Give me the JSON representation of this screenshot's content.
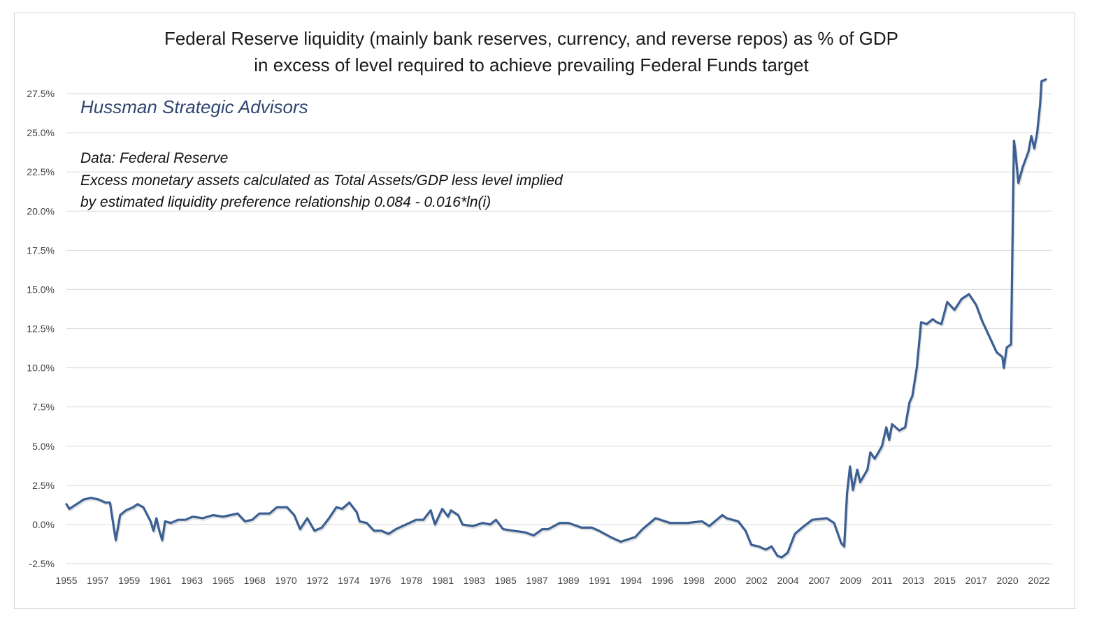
{
  "chart_data": {
    "type": "line",
    "title": "Federal Reserve liquidity (mainly bank reserves, currency, and reverse repos) as % of GDP",
    "subtitle": "in excess of level required to achieve prevailing Federal Funds target",
    "annotations": {
      "brand": "Hussman Strategic Advisors",
      "source": "Data: Federal Reserve",
      "note_line1": "Excess monetary assets calculated as Total Assets/GDP less level implied",
      "note_line2": "by estimated liquidity preference relationship 0.084 - 0.016*ln(i)"
    },
    "xlabel": "",
    "ylabel": "",
    "x_tick_labels": [
      "1955",
      "1957",
      "1959",
      "1961",
      "1963",
      "1965",
      "1968",
      "1970",
      "1972",
      "1974",
      "1976",
      "1978",
      "1981",
      "1983",
      "1985",
      "1987",
      "1989",
      "1991",
      "1994",
      "1996",
      "1998",
      "2000",
      "2002",
      "2004",
      "2007",
      "2009",
      "2011",
      "2013",
      "2015",
      "2017",
      "2020",
      "2022"
    ],
    "y_ticks": [
      -2.5,
      0,
      2.5,
      5,
      7.5,
      10,
      12.5,
      15,
      17.5,
      20,
      22.5,
      25,
      27.5
    ],
    "y_tick_labels": [
      "-2.5%",
      "0.0%",
      "2.5%",
      "5.0%",
      "7.5%",
      "10.0%",
      "12.5%",
      "15.0%",
      "17.5%",
      "20.0%",
      "22.5%",
      "25.0%",
      "27.5%"
    ],
    "ylim": [
      -2.5,
      27.5
    ],
    "xlim": [
      1955,
      2022.5
    ],
    "grid": true,
    "legend": "none",
    "line_color": "#3b5f93",
    "points": [
      [
        1955.0,
        1.3
      ],
      [
        1955.2,
        1.0
      ],
      [
        1955.7,
        1.3
      ],
      [
        1956.2,
        1.6
      ],
      [
        1956.7,
        1.7
      ],
      [
        1957.2,
        1.6
      ],
      [
        1957.7,
        1.4
      ],
      [
        1958.0,
        1.4
      ],
      [
        1958.2,
        0.2
      ],
      [
        1958.4,
        -1.0
      ],
      [
        1958.7,
        0.6
      ],
      [
        1959.1,
        0.9
      ],
      [
        1959.6,
        1.1
      ],
      [
        1959.9,
        1.3
      ],
      [
        1960.3,
        1.1
      ],
      [
        1960.8,
        0.2
      ],
      [
        1961.0,
        -0.4
      ],
      [
        1961.2,
        0.4
      ],
      [
        1961.4,
        -0.4
      ],
      [
        1961.6,
        -1.0
      ],
      [
        1961.8,
        0.2
      ],
      [
        1962.2,
        0.1
      ],
      [
        1962.7,
        0.3
      ],
      [
        1963.2,
        0.3
      ],
      [
        1963.7,
        0.5
      ],
      [
        1964.4,
        0.4
      ],
      [
        1965.1,
        0.6
      ],
      [
        1965.8,
        0.5
      ],
      [
        1966.3,
        0.6
      ],
      [
        1966.8,
        0.7
      ],
      [
        1967.3,
        0.2
      ],
      [
        1967.8,
        0.3
      ],
      [
        1968.3,
        0.7
      ],
      [
        1969.0,
        0.7
      ],
      [
        1969.5,
        1.1
      ],
      [
        1970.2,
        1.1
      ],
      [
        1970.7,
        0.6
      ],
      [
        1971.1,
        -0.3
      ],
      [
        1971.6,
        0.4
      ],
      [
        1972.1,
        -0.4
      ],
      [
        1972.6,
        -0.2
      ],
      [
        1973.1,
        0.4
      ],
      [
        1973.6,
        1.1
      ],
      [
        1974.0,
        1.0
      ],
      [
        1974.5,
        1.4
      ],
      [
        1975.0,
        0.8
      ],
      [
        1975.2,
        0.2
      ],
      [
        1975.7,
        0.1
      ],
      [
        1976.2,
        -0.4
      ],
      [
        1976.7,
        -0.4
      ],
      [
        1977.2,
        -0.6
      ],
      [
        1977.7,
        -0.3
      ],
      [
        1978.4,
        0.0
      ],
      [
        1979.1,
        0.3
      ],
      [
        1979.6,
        0.3
      ],
      [
        1980.1,
        0.9
      ],
      [
        1980.4,
        0.0
      ],
      [
        1980.9,
        1.0
      ],
      [
        1981.3,
        0.5
      ],
      [
        1981.5,
        0.9
      ],
      [
        1982.0,
        0.6
      ],
      [
        1982.3,
        0.0
      ],
      [
        1983.0,
        -0.1
      ],
      [
        1983.7,
        0.1
      ],
      [
        1984.2,
        0.0
      ],
      [
        1984.6,
        0.3
      ],
      [
        1985.1,
        -0.3
      ],
      [
        1985.8,
        -0.4
      ],
      [
        1986.6,
        -0.5
      ],
      [
        1987.2,
        -0.7
      ],
      [
        1987.8,
        -0.3
      ],
      [
        1988.2,
        -0.3
      ],
      [
        1989.0,
        0.1
      ],
      [
        1989.6,
        0.1
      ],
      [
        1990.5,
        -0.2
      ],
      [
        1991.2,
        -0.2
      ],
      [
        1991.7,
        -0.4
      ],
      [
        1992.5,
        -0.8
      ],
      [
        1993.2,
        -1.1
      ],
      [
        1994.2,
        -0.8
      ],
      [
        1994.7,
        -0.3
      ],
      [
        1995.6,
        0.4
      ],
      [
        1996.6,
        0.1
      ],
      [
        1997.8,
        0.1
      ],
      [
        1998.8,
        0.2
      ],
      [
        1999.3,
        -0.1
      ],
      [
        2000.2,
        0.6
      ],
      [
        2000.5,
        0.4
      ],
      [
        2001.3,
        0.2
      ],
      [
        2001.8,
        -0.4
      ],
      [
        2002.2,
        -1.3
      ],
      [
        2002.7,
        -1.4
      ],
      [
        2003.2,
        -1.6
      ],
      [
        2003.6,
        -1.4
      ],
      [
        2004.0,
        -2.0
      ],
      [
        2004.3,
        -2.1
      ],
      [
        2004.7,
        -1.8
      ],
      [
        2005.2,
        -0.6
      ],
      [
        2005.7,
        -0.2
      ],
      [
        2006.4,
        0.3
      ],
      [
        2007.4,
        0.4
      ],
      [
        2007.9,
        0.1
      ],
      [
        2008.4,
        -1.2
      ],
      [
        2008.6,
        -1.4
      ],
      [
        2008.8,
        2.0
      ],
      [
        2009.0,
        3.7
      ],
      [
        2009.2,
        2.2
      ],
      [
        2009.5,
        3.5
      ],
      [
        2009.7,
        2.7
      ],
      [
        2010.2,
        3.5
      ],
      [
        2010.4,
        4.6
      ],
      [
        2010.7,
        4.2
      ],
      [
        2010.9,
        4.5
      ],
      [
        2011.2,
        5.0
      ],
      [
        2011.5,
        6.2
      ],
      [
        2011.7,
        5.4
      ],
      [
        2011.9,
        6.4
      ],
      [
        2012.4,
        6.0
      ],
      [
        2012.8,
        6.2
      ],
      [
        2013.1,
        7.8
      ],
      [
        2013.3,
        8.2
      ],
      [
        2013.6,
        10.0
      ],
      [
        2013.9,
        12.9
      ],
      [
        2014.3,
        12.8
      ],
      [
        2014.7,
        13.1
      ],
      [
        2015.0,
        12.9
      ],
      [
        2015.3,
        12.8
      ],
      [
        2015.7,
        14.2
      ],
      [
        2016.2,
        13.7
      ],
      [
        2016.7,
        14.4
      ],
      [
        2017.2,
        14.7
      ],
      [
        2017.7,
        14.0
      ],
      [
        2018.1,
        13.0
      ],
      [
        2018.6,
        12.0
      ],
      [
        2019.1,
        11.0
      ],
      [
        2019.5,
        10.7
      ],
      [
        2019.6,
        10.0
      ],
      [
        2019.8,
        11.3
      ],
      [
        2020.1,
        11.5
      ],
      [
        2020.3,
        24.5
      ],
      [
        2020.4,
        23.8
      ],
      [
        2020.6,
        21.8
      ],
      [
        2020.9,
        22.8
      ],
      [
        2021.3,
        23.8
      ],
      [
        2021.5,
        24.8
      ],
      [
        2021.7,
        24.0
      ],
      [
        2021.9,
        25.0
      ],
      [
        2022.1,
        26.8
      ],
      [
        2022.2,
        28.3
      ],
      [
        2022.5,
        28.4
      ]
    ]
  }
}
